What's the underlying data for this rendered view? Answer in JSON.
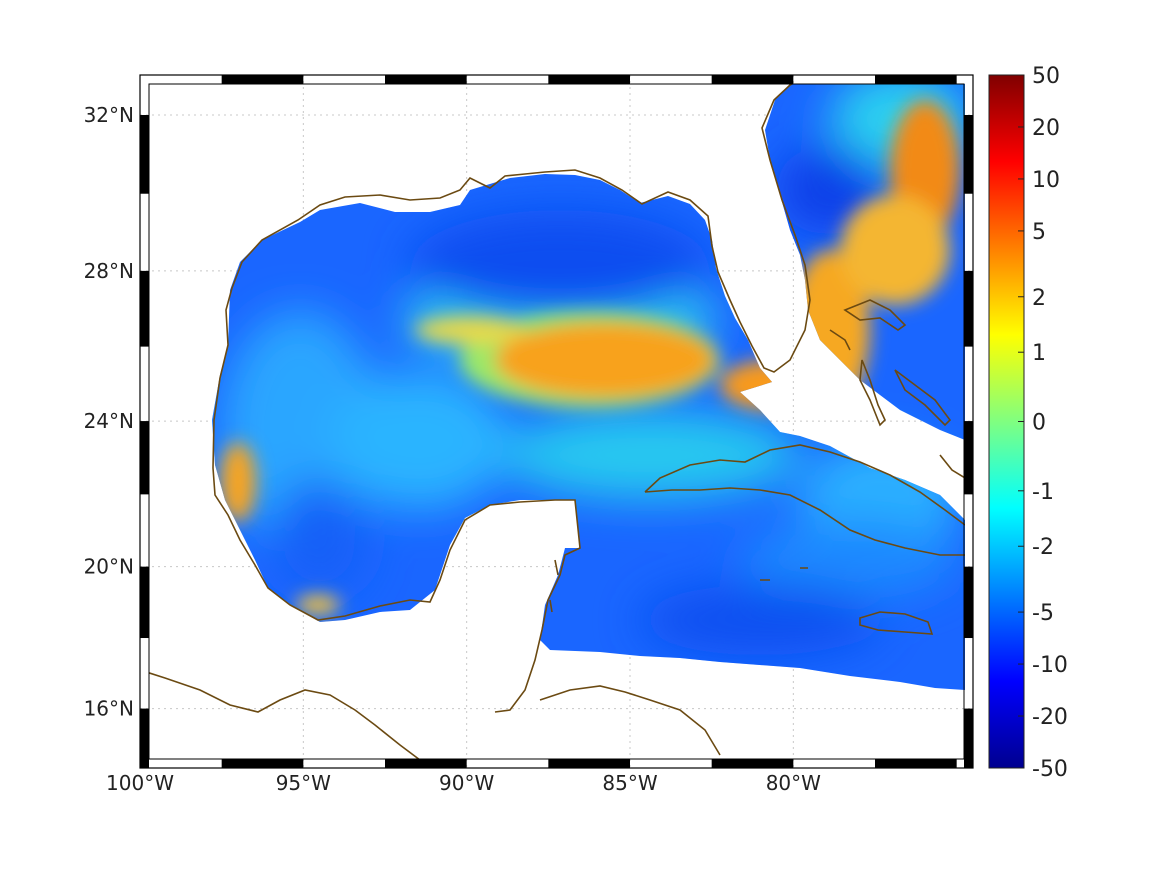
{
  "map": {
    "projection": "Mercator",
    "extent": {
      "lon_min": -100,
      "lon_max": -74.5,
      "lat_min": 14.3,
      "lat_max": 33.0
    },
    "lat_ticks": [
      {
        "value": 32,
        "label": "32°N"
      },
      {
        "value": 28,
        "label": "28°N"
      },
      {
        "value": 24,
        "label": "24°N"
      },
      {
        "value": 20,
        "label": "20°N"
      },
      {
        "value": 16,
        "label": "16°N"
      }
    ],
    "lon_ticks": [
      {
        "value": -100,
        "label": "100°W"
      },
      {
        "value": -95,
        "label": "95°W"
      },
      {
        "value": -90,
        "label": "90°W"
      },
      {
        "value": -85,
        "label": "85°W"
      },
      {
        "value": -80,
        "label": "80°W"
      }
    ],
    "grid": true,
    "frame_style": "alternating black/white border",
    "coastline_color": "#6b4a12",
    "land_color": "#ffffff"
  },
  "colorbar": {
    "colormap": "jet",
    "orientation": "vertical",
    "placement": "right",
    "ticks": [
      "50",
      "20",
      "10",
      "5",
      "2",
      "1",
      "0",
      "-1",
      "-2",
      "-5",
      "-10",
      "-20",
      "-50"
    ],
    "range": [
      -50,
      50
    ]
  },
  "field_features": [
    {
      "name": "Loop Current warm core",
      "lon": -86,
      "lat": 25.7,
      "value": 5
    },
    {
      "name": "Florida Straits / Gulf Stream",
      "lon": -79.5,
      "lat": 26,
      "value": 4
    },
    {
      "name": "Gulf Stream NE branch",
      "lon": -76.5,
      "lat": 30.8,
      "value": 6
    },
    {
      "name": "Western Gulf coastal maximum",
      "lon": -97.5,
      "lat": 22.5,
      "value": 4
    },
    {
      "name": "Bay of Campeche coastal maximum",
      "lon": -94.5,
      "lat": 18.5,
      "value": 2
    },
    {
      "name": "Northern Gulf minimum",
      "lon": -87,
      "lat": 27.8,
      "value": -8
    },
    {
      "name": "Atlantic minimum off Georgia",
      "lon": -79,
      "lat": 30.3,
      "value": -9
    },
    {
      "name": "Caribbean minimum",
      "lon": -81,
      "lat": 17.8,
      "value": -8
    }
  ]
}
